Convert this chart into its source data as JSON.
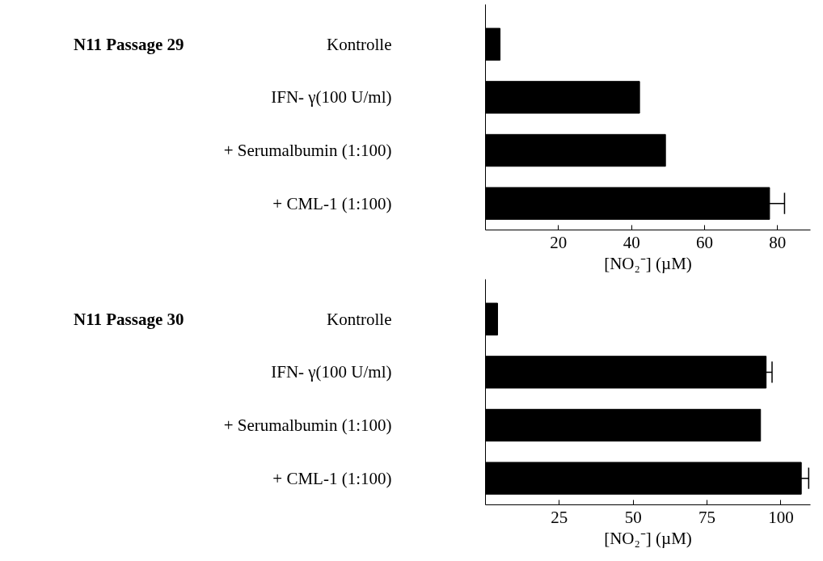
{
  "chart_data": [
    {
      "type": "bar",
      "orientation": "horizontal",
      "title": "N11 Passage 29",
      "xlabel": "[NO₂⁻] (µM)",
      "categories": [
        "Kontrolle",
        "IFN- γ(100 U/ml)",
        "+ Serumalbumin (1:100)",
        "+ CML-1 (1:100)"
      ],
      "values": [
        4.0,
        42.2,
        49.3,
        77.8
      ],
      "errors": [
        null,
        null,
        null,
        4.1
      ],
      "color": "#000000",
      "xlim": [
        0,
        89
      ],
      "xticks": [
        20,
        40,
        60,
        80
      ]
    },
    {
      "type": "bar",
      "orientation": "horizontal",
      "title": "N11 Passage 30",
      "xlabel": "[NO₂⁻] (µM)",
      "categories": [
        "Kontrolle",
        "IFN- γ(100 U/ml)",
        "+ Serumalbumin (1:100)",
        "+ CML-1 (1:100)"
      ],
      "values": [
        4.1,
        95.0,
        93.1,
        106.9
      ],
      "errors": [
        null,
        2,
        null,
        2.5
      ],
      "color": "#000000",
      "xlim": [
        0,
        110
      ],
      "xticks": [
        25,
        50,
        75,
        100
      ]
    }
  ]
}
